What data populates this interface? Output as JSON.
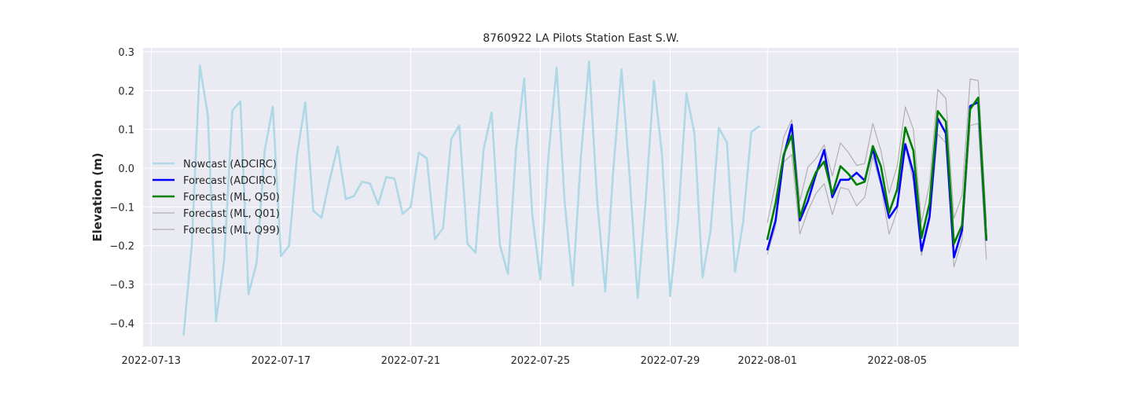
{
  "chart_data": {
    "type": "line",
    "title": "8760922 LA Pilots Station East S.W.",
    "xlabel": "",
    "ylabel": "Elevation (m)",
    "xlim": [
      "2022-07-12 18:00",
      "2022-08-08 18:00"
    ],
    "ylim": [
      -0.46,
      0.31
    ],
    "x_ticks": [
      "2022-07-13",
      "2022-07-17",
      "2022-07-21",
      "2022-07-25",
      "2022-07-29",
      "2022-08-01",
      "2022-08-05"
    ],
    "y_ticks": [
      "-0.4",
      "-0.3",
      "-0.2",
      "-0.1",
      "0.0",
      "0.1",
      "0.2",
      "0.3"
    ],
    "grid": true,
    "legend_position": "center-left",
    "series": [
      {
        "name": "Nowcast (ADCIRC)",
        "color": "#add8e6",
        "x": [
          "2022-07-14 00:00",
          "2022-07-14 06:00",
          "2022-07-14 12:00",
          "2022-07-14 18:00",
          "2022-07-15 00:00",
          "2022-07-15 06:00",
          "2022-07-15 12:00",
          "2022-07-15 18:00",
          "2022-07-16 00:00",
          "2022-07-16 06:00",
          "2022-07-16 12:00",
          "2022-07-16 18:00",
          "2022-07-17 00:00",
          "2022-07-17 06:00",
          "2022-07-17 12:00",
          "2022-07-17 18:00",
          "2022-07-18 00:00",
          "2022-07-18 06:00",
          "2022-07-18 12:00",
          "2022-07-18 18:00",
          "2022-07-19 00:00",
          "2022-07-19 06:00",
          "2022-07-19 12:00",
          "2022-07-19 18:00",
          "2022-07-20 00:00",
          "2022-07-20 06:00",
          "2022-07-20 12:00",
          "2022-07-20 18:00",
          "2022-07-21 00:00",
          "2022-07-21 06:00",
          "2022-07-21 12:00",
          "2022-07-21 18:00",
          "2022-07-22 00:00",
          "2022-07-22 06:00",
          "2022-07-22 12:00",
          "2022-07-22 18:00",
          "2022-07-23 00:00",
          "2022-07-23 06:00",
          "2022-07-23 12:00",
          "2022-07-23 18:00",
          "2022-07-24 00:00",
          "2022-07-24 06:00",
          "2022-07-24 12:00",
          "2022-07-24 18:00",
          "2022-07-25 00:00",
          "2022-07-25 06:00",
          "2022-07-25 12:00",
          "2022-07-25 18:00",
          "2022-07-26 00:00",
          "2022-07-26 06:00",
          "2022-07-26 12:00",
          "2022-07-26 18:00",
          "2022-07-27 00:00",
          "2022-07-27 06:00",
          "2022-07-27 12:00",
          "2022-07-27 18:00",
          "2022-07-28 00:00",
          "2022-07-28 06:00",
          "2022-07-28 12:00",
          "2022-07-28 18:00",
          "2022-07-29 00:00",
          "2022-07-29 06:00",
          "2022-07-29 12:00",
          "2022-07-29 18:00",
          "2022-07-30 00:00",
          "2022-07-30 06:00",
          "2022-07-30 12:00",
          "2022-07-30 18:00",
          "2022-07-31 00:00",
          "2022-07-31 06:00",
          "2022-07-31 12:00",
          "2022-07-31 18:00"
        ],
        "y": [
          -0.43,
          -0.2,
          0.265,
          0.135,
          -0.395,
          -0.24,
          0.148,
          0.172,
          -0.325,
          -0.245,
          0.045,
          0.158,
          -0.227,
          -0.2,
          0.036,
          0.17,
          -0.11,
          -0.128,
          -0.032,
          0.056,
          -0.08,
          -0.072,
          -0.035,
          -0.04,
          -0.094,
          -0.023,
          -0.027,
          -0.118,
          -0.1,
          0.04,
          0.025,
          -0.183,
          -0.155,
          0.075,
          0.11,
          -0.195,
          -0.218,
          0.048,
          0.144,
          -0.198,
          -0.273,
          0.05,
          0.231,
          -0.12,
          -0.287,
          0.03,
          0.26,
          -0.09,
          -0.303,
          0.03,
          0.275,
          -0.08,
          -0.318,
          0.0,
          0.255,
          -0.02,
          -0.335,
          -0.08,
          0.225,
          0.035,
          -0.33,
          -0.13,
          0.193,
          0.09,
          -0.282,
          -0.16,
          0.104,
          0.066,
          -0.268,
          -0.14,
          0.093,
          0.108
        ]
      },
      {
        "name": "Forecast (ADCIRC)",
        "color": "#0000ff",
        "x": [
          "2022-08-01 00:00",
          "2022-08-01 06:00",
          "2022-08-01 12:00",
          "2022-08-01 18:00",
          "2022-08-02 00:00",
          "2022-08-02 06:00",
          "2022-08-02 12:00",
          "2022-08-02 18:00",
          "2022-08-03 00:00",
          "2022-08-03 06:00",
          "2022-08-03 12:00",
          "2022-08-03 18:00",
          "2022-08-04 00:00",
          "2022-08-04 06:00",
          "2022-08-04 12:00",
          "2022-08-04 18:00",
          "2022-08-05 00:00",
          "2022-08-05 06:00",
          "2022-08-05 12:00",
          "2022-08-05 18:00",
          "2022-08-06 00:00",
          "2022-08-06 06:00",
          "2022-08-06 12:00",
          "2022-08-06 18:00",
          "2022-08-07 00:00",
          "2022-08-07 06:00",
          "2022-08-07 12:00",
          "2022-08-07 18:00"
        ],
        "y": [
          -0.21,
          -0.135,
          0.03,
          0.112,
          -0.135,
          -0.085,
          -0.015,
          0.047,
          -0.075,
          -0.03,
          -0.03,
          -0.012,
          -0.032,
          0.05,
          -0.035,
          -0.128,
          -0.098,
          0.062,
          -0.012,
          -0.213,
          -0.125,
          0.128,
          0.09,
          -0.23,
          -0.16,
          0.16,
          0.17,
          -0.185
        ]
      },
      {
        "name": "Forecast (ML, Q50)",
        "color": "#008000",
        "x": [
          "2022-08-01 00:00",
          "2022-08-01 06:00",
          "2022-08-01 12:00",
          "2022-08-01 18:00",
          "2022-08-02 00:00",
          "2022-08-02 06:00",
          "2022-08-02 12:00",
          "2022-08-02 18:00",
          "2022-08-03 00:00",
          "2022-08-03 06:00",
          "2022-08-03 12:00",
          "2022-08-03 18:00",
          "2022-08-04 00:00",
          "2022-08-04 06:00",
          "2022-08-04 12:00",
          "2022-08-04 18:00",
          "2022-08-05 00:00",
          "2022-08-05 06:00",
          "2022-08-05 12:00",
          "2022-08-05 18:00",
          "2022-08-06 00:00",
          "2022-08-06 06:00",
          "2022-08-06 12:00",
          "2022-08-06 18:00",
          "2022-08-07 00:00",
          "2022-08-07 06:00",
          "2022-08-07 12:00",
          "2022-08-07 18:00"
        ],
        "y": [
          -0.183,
          -0.09,
          0.035,
          0.085,
          -0.127,
          -0.06,
          -0.01,
          0.017,
          -0.067,
          0.005,
          -0.015,
          -0.043,
          -0.035,
          0.057,
          0.005,
          -0.115,
          -0.055,
          0.105,
          0.045,
          -0.18,
          -0.09,
          0.147,
          0.12,
          -0.195,
          -0.147,
          0.152,
          0.182,
          -0.183
        ]
      },
      {
        "name": "Forecast (ML, Q01)",
        "color": "#b0b0b0",
        "x": [
          "2022-08-01 00:00",
          "2022-08-01 06:00",
          "2022-08-01 12:00",
          "2022-08-01 18:00",
          "2022-08-02 00:00",
          "2022-08-02 06:00",
          "2022-08-02 12:00",
          "2022-08-02 18:00",
          "2022-08-03 00:00",
          "2022-08-03 06:00",
          "2022-08-03 12:00",
          "2022-08-03 18:00",
          "2022-08-04 00:00",
          "2022-08-04 06:00",
          "2022-08-04 12:00",
          "2022-08-04 18:00",
          "2022-08-05 00:00",
          "2022-08-05 06:00",
          "2022-08-05 12:00",
          "2022-08-05 18:00",
          "2022-08-06 00:00",
          "2022-08-06 06:00",
          "2022-08-06 12:00",
          "2022-08-06 18:00",
          "2022-08-07 00:00",
          "2022-08-07 06:00",
          "2022-08-07 12:00",
          "2022-08-07 18:00"
        ],
        "y": [
          -0.222,
          -0.15,
          0.015,
          0.035,
          -0.17,
          -0.11,
          -0.065,
          -0.04,
          -0.12,
          -0.05,
          -0.055,
          -0.097,
          -0.075,
          0.03,
          -0.045,
          -0.17,
          -0.11,
          0.06,
          -0.035,
          -0.225,
          -0.135,
          0.088,
          0.065,
          -0.255,
          -0.185,
          0.11,
          0.115,
          -0.235
        ]
      },
      {
        "name": "Forecast (ML, Q99)",
        "color": "#b0b0b0",
        "x": [
          "2022-08-01 00:00",
          "2022-08-01 06:00",
          "2022-08-01 12:00",
          "2022-08-01 18:00",
          "2022-08-02 00:00",
          "2022-08-02 06:00",
          "2022-08-02 12:00",
          "2022-08-02 18:00",
          "2022-08-03 00:00",
          "2022-08-03 06:00",
          "2022-08-03 12:00",
          "2022-08-03 18:00",
          "2022-08-04 00:00",
          "2022-08-04 06:00",
          "2022-08-04 12:00",
          "2022-08-04 18:00",
          "2022-08-05 00:00",
          "2022-08-05 06:00",
          "2022-08-05 12:00",
          "2022-08-05 18:00",
          "2022-08-06 00:00",
          "2022-08-06 06:00",
          "2022-08-06 12:00",
          "2022-08-06 18:00",
          "2022-08-07 00:00",
          "2022-08-07 06:00",
          "2022-08-07 12:00",
          "2022-08-07 18:00"
        ],
        "y": [
          -0.14,
          -0.04,
          0.08,
          0.125,
          -0.085,
          0.003,
          0.025,
          0.06,
          -0.02,
          0.065,
          0.04,
          0.007,
          0.012,
          0.115,
          0.045,
          -0.065,
          0.005,
          0.158,
          0.1,
          -0.14,
          -0.04,
          0.203,
          0.18,
          -0.13,
          -0.07,
          0.23,
          0.226,
          -0.135
        ]
      }
    ]
  }
}
